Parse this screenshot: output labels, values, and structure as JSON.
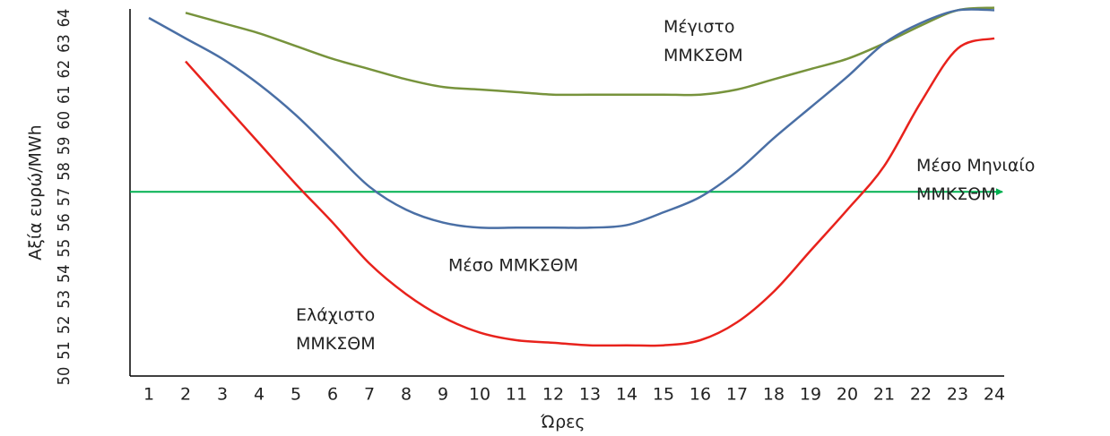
{
  "chart_data": {
    "type": "line",
    "x_label": "Ώρες",
    "y_label": "Αξία ευρώ/MWh",
    "categories": [
      "1",
      "2",
      "3",
      "4",
      "5",
      "6",
      "7",
      "8",
      "9",
      "10",
      "11",
      "12",
      "13",
      "14",
      "15",
      "16",
      "17",
      "18",
      "19",
      "20",
      "21",
      "22",
      "23",
      "24"
    ],
    "series": [
      {
        "name": "Μέγιστο ΜΜΚΣΘΜ",
        "color": "#77933c",
        "values": [
          null,
          64.2,
          63.8,
          63.4,
          62.9,
          62.4,
          62.0,
          61.6,
          61.3,
          61.2,
          61.1,
          61.0,
          61.0,
          61.0,
          61.0,
          61.0,
          61.2,
          61.6,
          62.0,
          62.4,
          63.0,
          63.7,
          64.3,
          64.4
        ]
      },
      {
        "name": "Μέσο ΜΜΚΣΘΜ",
        "color": "#4a6fa5",
        "values": [
          64.0,
          63.2,
          62.4,
          61.4,
          60.2,
          58.8,
          57.4,
          56.5,
          56.0,
          55.8,
          55.8,
          55.8,
          55.8,
          55.9,
          56.4,
          57.0,
          58.0,
          59.3,
          60.5,
          61.7,
          63.0,
          63.8,
          64.3,
          64.3
        ]
      },
      {
        "name": "Ελάχιστο ΜΜΚΣΘΜ",
        "color": "#e8221c",
        "values": [
          null,
          62.3,
          60.7,
          59.1,
          57.5,
          56.0,
          54.4,
          53.2,
          52.3,
          51.7,
          51.4,
          51.3,
          51.2,
          51.2,
          51.2,
          51.4,
          52.1,
          53.3,
          54.9,
          56.5,
          58.2,
          60.7,
          62.8,
          63.2
        ]
      }
    ],
    "average": {
      "label": "Μέσο Μηνιαίο ΜΜΚΣΘΜ",
      "value": 57.2,
      "color": "#00b050"
    },
    "ylim": [
      50,
      64
    ],
    "yticks": [
      50,
      51,
      52,
      53,
      54,
      55,
      56,
      57,
      58,
      59,
      60,
      61,
      62,
      63,
      64
    ],
    "grid": false
  }
}
